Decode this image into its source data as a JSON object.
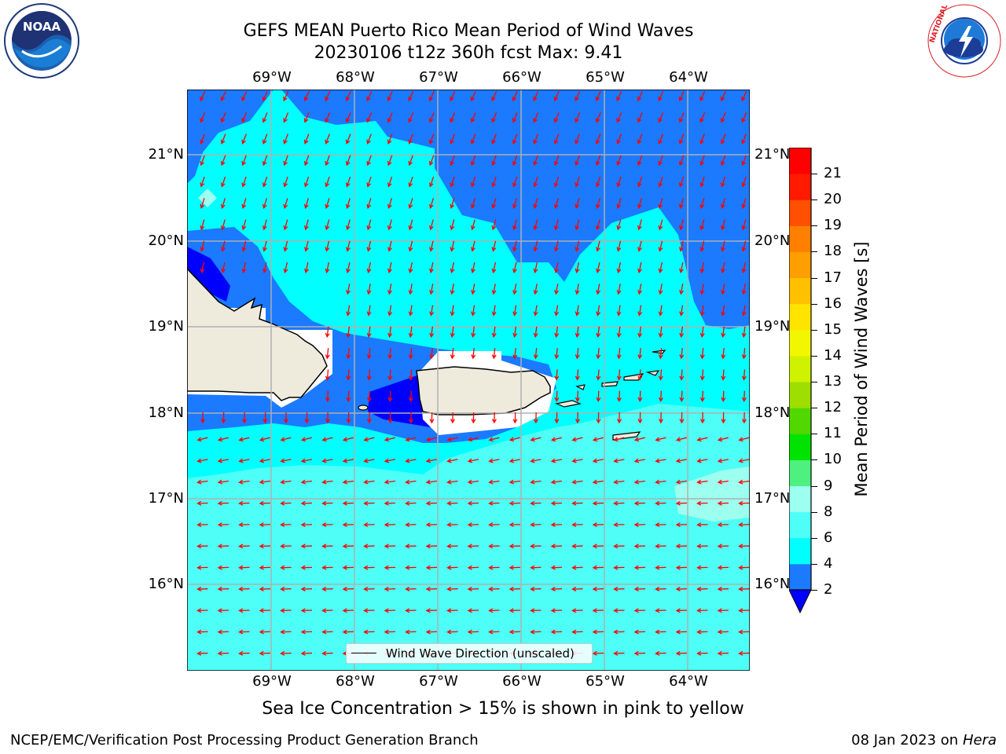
{
  "header": {
    "title_line1": "GEFS MEAN Puerto Rico Mean Period of Wind Waves",
    "title_line2": "20230106 t12z 360h fcst   Max: 9.41"
  },
  "map": {
    "lon_labels": [
      "69°W",
      "68°W",
      "67°W",
      "66°W",
      "65°W",
      "64°W"
    ],
    "lat_labels": [
      "21°N",
      "20°N",
      "19°N",
      "18°N",
      "17°N",
      "16°N"
    ],
    "land_color": "#efebdc",
    "arrow_color": "#ff0000",
    "grid": true,
    "legend_label": "Wind Wave Direction (unscaled)"
  },
  "colorbar": {
    "title": "Mean Period of Wind Waves [s]",
    "labels": [
      "2",
      "4",
      "6",
      "8",
      "9",
      "10",
      "11",
      "12",
      "13",
      "14",
      "15",
      "16",
      "17",
      "18",
      "19",
      "20",
      "21"
    ],
    "colors": [
      "#1b7aff",
      "#00ffff",
      "#4dfff6",
      "#9dfff0",
      "#4ef07f",
      "#00e200",
      "#50d800",
      "#9ede00",
      "#cef200",
      "#f2f700",
      "#ffe400",
      "#ffc000",
      "#ff9e00",
      "#ff7f00",
      "#ff4f00",
      "#ff1a00",
      "#ff0000"
    ],
    "under_color": "#0000ff"
  },
  "footer": {
    "sea_ice_note": "Sea Ice Concentration > 15% is shown in pink to yellow",
    "left": "NCEP/EMC/Verification Post Processing Product Generation Branch",
    "date": "08 Jan 2023 on",
    "host": "Hera"
  },
  "logos": {
    "noaa": "NOAA",
    "nws": "NATIONAL WEATHER SERVICE"
  }
}
